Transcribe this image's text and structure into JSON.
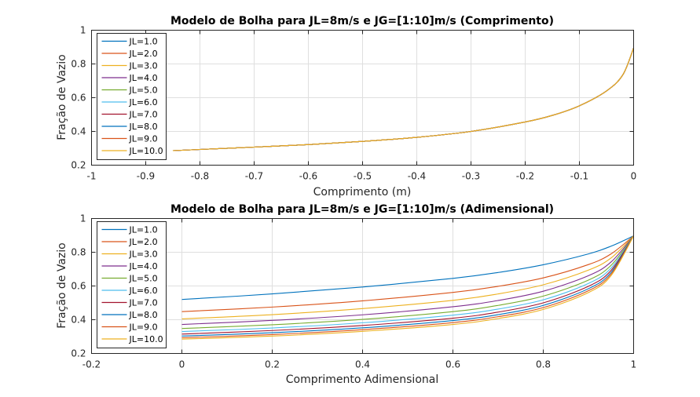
{
  "colors": [
    "#0072bd",
    "#d95319",
    "#edb120",
    "#7e2f8e",
    "#77ac30",
    "#4dbeee",
    "#a2142f",
    "#0072bd",
    "#d95319",
    "#edb120"
  ],
  "chart_data": [
    {
      "type": "line",
      "title": "Modelo de Bolha para JL=8m/s e JG=[1:10]m/s (Comprimento)",
      "xlabel": "Comprimento (m)",
      "ylabel": "Fração de Vazio",
      "xlim": [
        -1,
        0
      ],
      "ylim": [
        0.2,
        1
      ],
      "xticks": [
        -1,
        -0.9,
        -0.8,
        -0.7,
        -0.6,
        -0.5,
        -0.4,
        -0.3,
        -0.2,
        -0.1,
        0
      ],
      "xtick_labels": [
        "-1",
        "-0.9",
        "-0.8",
        "-0.7",
        "-0.6",
        "-0.5",
        "-0.4",
        "-0.3",
        "-0.2",
        "-0.1",
        "0"
      ],
      "yticks": [
        0.2,
        0.4,
        0.6,
        0.8,
        1
      ],
      "ytick_labels": [
        "0.2",
        "0.4",
        "0.6",
        "0.8",
        "1"
      ],
      "grid": true,
      "legend_position": "top-left",
      "x": [
        -0.85,
        -0.8,
        -0.7,
        -0.6,
        -0.5,
        -0.4,
        -0.3,
        -0.2,
        -0.15,
        -0.1,
        -0.05,
        -0.02,
        0
      ],
      "series": [
        {
          "name": "JL=1.0",
          "values": [
            0.286,
            0.293,
            0.307,
            0.322,
            0.341,
            0.365,
            0.4,
            0.456,
            0.495,
            0.552,
            0.64,
            0.735,
            0.895
          ]
        },
        {
          "name": "JL=2.0",
          "values": [
            0.286,
            0.293,
            0.307,
            0.322,
            0.341,
            0.365,
            0.4,
            0.456,
            0.495,
            0.552,
            0.64,
            0.735,
            0.895
          ]
        },
        {
          "name": "JL=3.0",
          "values": [
            0.286,
            0.293,
            0.307,
            0.322,
            0.341,
            0.365,
            0.4,
            0.456,
            0.495,
            0.552,
            0.64,
            0.735,
            0.895
          ]
        },
        {
          "name": "JL=4.0",
          "values": [
            0.286,
            0.293,
            0.307,
            0.322,
            0.341,
            0.365,
            0.4,
            0.456,
            0.495,
            0.552,
            0.64,
            0.735,
            0.895
          ]
        },
        {
          "name": "JL=5.0",
          "values": [
            0.286,
            0.293,
            0.307,
            0.322,
            0.341,
            0.365,
            0.4,
            0.456,
            0.495,
            0.552,
            0.64,
            0.735,
            0.895
          ]
        },
        {
          "name": "JL=6.0",
          "values": [
            0.286,
            0.293,
            0.307,
            0.322,
            0.341,
            0.365,
            0.4,
            0.456,
            0.495,
            0.552,
            0.64,
            0.735,
            0.895
          ]
        },
        {
          "name": "JL=7.0",
          "values": [
            0.286,
            0.293,
            0.307,
            0.322,
            0.341,
            0.365,
            0.4,
            0.456,
            0.495,
            0.552,
            0.64,
            0.735,
            0.895
          ]
        },
        {
          "name": "JL=8.0",
          "values": [
            0.286,
            0.293,
            0.307,
            0.322,
            0.341,
            0.365,
            0.4,
            0.456,
            0.495,
            0.552,
            0.64,
            0.735,
            0.895
          ]
        },
        {
          "name": "JL=9.0",
          "values": [
            0.286,
            0.293,
            0.307,
            0.322,
            0.341,
            0.365,
            0.4,
            0.456,
            0.495,
            0.552,
            0.64,
            0.735,
            0.895
          ]
        },
        {
          "name": "JL=10.0",
          "values": [
            0.286,
            0.293,
            0.307,
            0.322,
            0.341,
            0.365,
            0.4,
            0.456,
            0.495,
            0.552,
            0.64,
            0.735,
            0.895
          ]
        }
      ]
    },
    {
      "type": "line",
      "title": "Modelo de Bolha para JL=8m/s e JG=[1:10]m/s (Adimensional)",
      "xlabel": "Comprimento Adimensional",
      "ylabel": "Fração de Vazio",
      "xlim": [
        -0.2,
        1
      ],
      "ylim": [
        0.2,
        1
      ],
      "xticks": [
        -0.2,
        0,
        0.2,
        0.4,
        0.6,
        0.8,
        1
      ],
      "xtick_labels": [
        "-0.2",
        "0",
        "0.2",
        "0.4",
        "0.6",
        "0.8",
        "1"
      ],
      "yticks": [
        0.2,
        0.4,
        0.6,
        0.8,
        1
      ],
      "ytick_labels": [
        "0.2",
        "0.4",
        "0.6",
        "0.8",
        "1"
      ],
      "grid": true,
      "legend_position": "top-left",
      "x": [
        0,
        0.2,
        0.4,
        0.6,
        0.7,
        0.8,
        0.9,
        0.95,
        1
      ],
      "series": [
        {
          "name": "JL=1.0",
          "values": [
            0.52,
            0.553,
            0.594,
            0.645,
            0.68,
            0.726,
            0.79,
            0.836,
            0.897
          ]
        },
        {
          "name": "JL=2.0",
          "values": [
            0.448,
            0.475,
            0.512,
            0.562,
            0.598,
            0.648,
            0.727,
            0.79,
            0.897
          ]
        },
        {
          "name": "JL=3.0",
          "values": [
            0.405,
            0.43,
            0.466,
            0.515,
            0.553,
            0.607,
            0.694,
            0.766,
            0.897
          ]
        },
        {
          "name": "JL=4.0",
          "values": [
            0.372,
            0.396,
            0.429,
            0.477,
            0.514,
            0.569,
            0.661,
            0.742,
            0.897
          ]
        },
        {
          "name": "JL=5.0",
          "values": [
            0.348,
            0.37,
            0.402,
            0.448,
            0.485,
            0.54,
            0.635,
            0.722,
            0.897
          ]
        },
        {
          "name": "JL=6.0",
          "values": [
            0.33,
            0.351,
            0.382,
            0.427,
            0.463,
            0.518,
            0.615,
            0.706,
            0.897
          ]
        },
        {
          "name": "JL=7.0",
          "values": [
            0.315,
            0.336,
            0.366,
            0.409,
            0.445,
            0.5,
            0.598,
            0.692,
            0.897
          ]
        },
        {
          "name": "JL=8.0",
          "values": [
            0.303,
            0.323,
            0.352,
            0.395,
            0.43,
            0.485,
            0.584,
            0.68,
            0.897
          ]
        },
        {
          "name": "JL=9.0",
          "values": [
            0.293,
            0.312,
            0.341,
            0.383,
            0.418,
            0.472,
            0.572,
            0.67,
            0.897
          ]
        },
        {
          "name": "JL=10.0",
          "values": [
            0.285,
            0.303,
            0.331,
            0.372,
            0.407,
            0.461,
            0.561,
            0.661,
            0.897
          ]
        }
      ]
    }
  ]
}
